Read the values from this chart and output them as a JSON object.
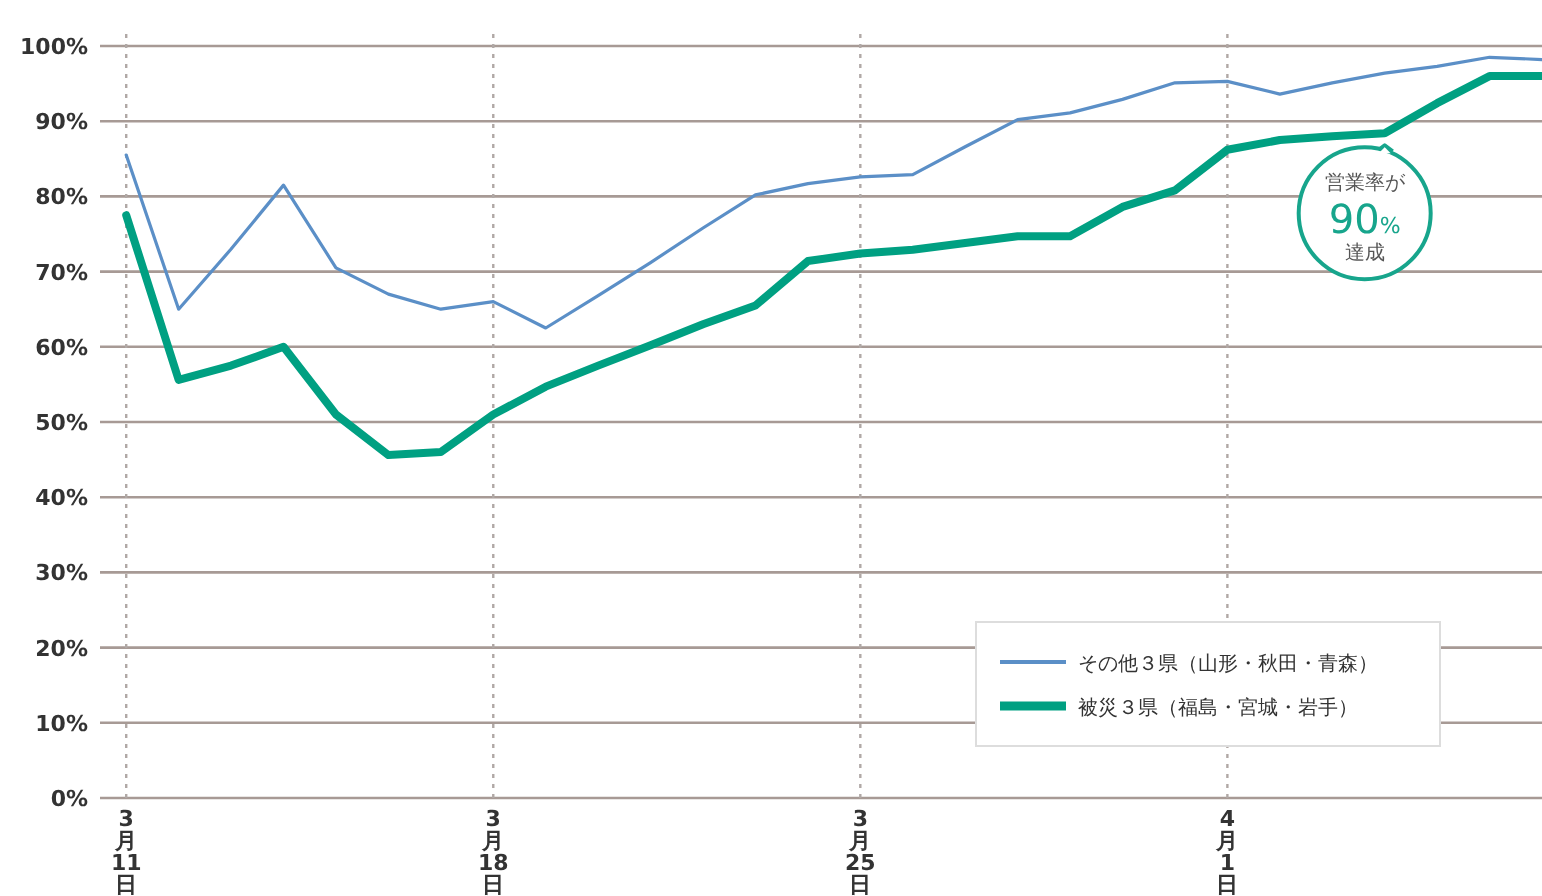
{
  "chart_data": {
    "type": "line",
    "x": [
      "--03-11",
      "--03-12",
      "--03-13",
      "--03-14",
      "--03-15",
      "--03-16",
      "--03-17",
      "--03-18",
      "--03-19",
      "--03-20",
      "--03-21",
      "--03-22",
      "--03-23",
      "--03-24",
      "--03-25",
      "--03-26",
      "--03-27",
      "--03-28",
      "--03-29",
      "--03-30",
      "--03-31",
      "--04-01",
      "--04-02",
      "--04-03",
      "--04-04",
      "--04-05",
      "--04-06",
      "--04-07"
    ],
    "series": [
      {
        "name": "その他３県（山形・秋田・青森）",
        "color": "#5b8fc7",
        "values": [
          85.5,
          65,
          73,
          81.5,
          70.5,
          67,
          65,
          66,
          62.5,
          66.8,
          71.2,
          75.8,
          80.2,
          81.7,
          82.6,
          82.9,
          86.6,
          90.2,
          91.1,
          92.9,
          95.1,
          95.3,
          93.6,
          95.1,
          96.4,
          97.3,
          98.5,
          98.2
        ]
      },
      {
        "name": "被災３県（福島・宮城・岩手）",
        "color": "#00a082",
        "values": [
          77.5,
          55.6,
          57.5,
          60,
          51,
          45.6,
          46,
          51,
          54.7,
          57.5,
          60.2,
          63,
          65.5,
          71.4,
          72.4,
          72.9,
          73.8,
          74.7,
          74.7,
          78.6,
          80.8,
          86.2,
          87.5,
          88,
          88.4,
          92.4,
          96,
          96
        ]
      }
    ],
    "xlim": [
      "--03-10T12:00",
      "--04-07"
    ],
    "xticks": [
      {
        "value": "--03-11",
        "label": "3月11日"
      },
      {
        "value": "--03-18",
        "label": "3月18日"
      },
      {
        "value": "--03-25",
        "label": "3月25日"
      },
      {
        "value": "--04-01",
        "label": "4月1日"
      }
    ],
    "ylim": [
      0,
      100
    ],
    "yticks": [
      {
        "value": 0,
        "label": "0%"
      },
      {
        "value": 10,
        "label": "10%"
      },
      {
        "value": 20,
        "label": "20%"
      },
      {
        "value": 30,
        "label": "30%"
      },
      {
        "value": 40,
        "label": "40%"
      },
      {
        "value": 50,
        "label": "50%"
      },
      {
        "value": 60,
        "label": "60%"
      },
      {
        "value": 70,
        "label": "70%"
      },
      {
        "value": 80,
        "label": "80%"
      },
      {
        "value": 90,
        "label": "90%"
      },
      {
        "value": 100,
        "label": "100%"
      }
    ],
    "grid": true,
    "legend": "bottom right",
    "marker": "none",
    "line_style": "solid",
    "annotations": [
      {
        "text": "営業率が\n90%\n達成",
        "x": "--04-04",
        "y": 88.4
      }
    ]
  }
}
